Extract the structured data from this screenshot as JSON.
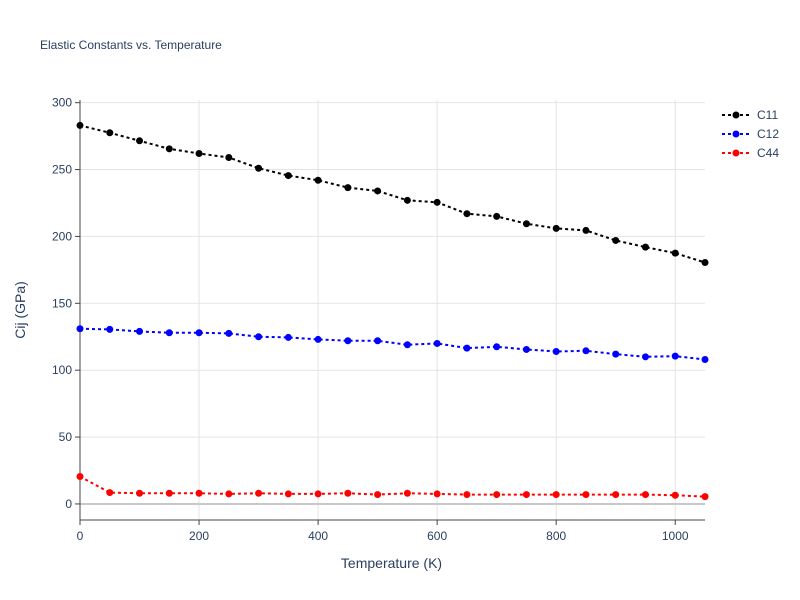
{
  "chart_data": {
    "type": "line",
    "title": "Elastic Constants vs. Temperature",
    "xlabel": "Temperature (K)",
    "ylabel": "Cij (GPa)",
    "xlim": [
      0,
      1050
    ],
    "ylim": [
      -12,
      302
    ],
    "xticks": [
      0,
      200,
      400,
      600,
      800,
      1000
    ],
    "xtick_labels": [
      "0",
      "200",
      "400",
      "600",
      "800",
      "1000"
    ],
    "yticks": [
      0,
      50,
      100,
      150,
      200,
      250,
      300
    ],
    "ytick_labels": [
      "0",
      "50",
      "100",
      "150",
      "200",
      "250",
      "300"
    ],
    "grid": true,
    "legend_position": "top-right",
    "line_style": "dotted",
    "markers": true,
    "x": [
      0,
      50,
      100,
      150,
      200,
      250,
      300,
      350,
      400,
      450,
      500,
      550,
      600,
      650,
      700,
      750,
      800,
      850,
      900,
      950,
      1000,
      1050
    ],
    "series": [
      {
        "name": "C11",
        "color": "#000000",
        "values": [
          283,
          277.5,
          271.5,
          265.5,
          262,
          259,
          251,
          245.5,
          242,
          236.5,
          234,
          227,
          225.5,
          217,
          215,
          209.5,
          206,
          204.5,
          197,
          192,
          187.5,
          180.5
        ]
      },
      {
        "name": "C12",
        "color": "#0000ff",
        "values": [
          131,
          130.5,
          129,
          128,
          128,
          127.5,
          125,
          124.5,
          123,
          122,
          122,
          119,
          120,
          116.5,
          117.5,
          115.5,
          114,
          114.5,
          112,
          110,
          110.5,
          108
        ]
      },
      {
        "name": "C44",
        "color": "#ff0000",
        "values": [
          20.5,
          8.5,
          8,
          8,
          8,
          7.5,
          8,
          7.5,
          7.5,
          8,
          7,
          8,
          7.5,
          7,
          7,
          7,
          7,
          7,
          7,
          7,
          6.5,
          5.5
        ]
      }
    ]
  }
}
